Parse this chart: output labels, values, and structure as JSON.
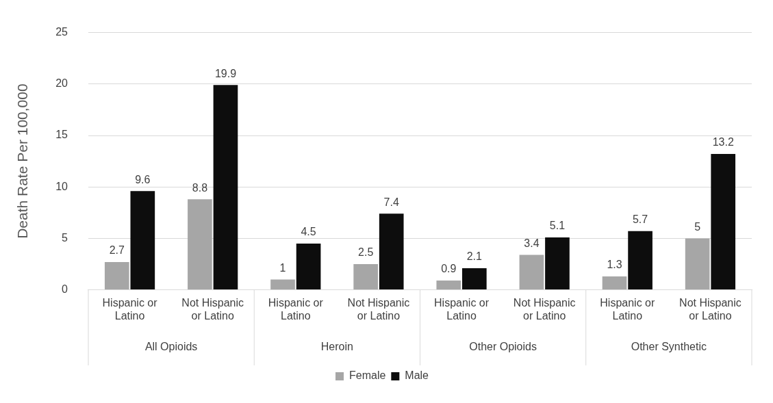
{
  "chart_data": {
    "type": "bar",
    "ylabel": "Death Rate Per 100,000",
    "categories": [
      "Hispanic or Latino",
      "Not Hispanic or Latino",
      "Hispanic or Latino",
      "Not Hispanic or Latino",
      "Hispanic or Latino",
      "Not Hispanic or Latino",
      "Hispanic or Latino",
      "Not Hispanic or Latino"
    ],
    "series": [
      {
        "name": "Female",
        "color": "#a6a6a6",
        "values": [
          2.7,
          8.8,
          1,
          2.5,
          0.9,
          3.4,
          1.3,
          5
        ]
      },
      {
        "name": "Male",
        "color": "#0d0d0d",
        "values": [
          9.6,
          19.9,
          4.5,
          7.4,
          2.1,
          5.1,
          5.7,
          13.2
        ]
      }
    ],
    "annotations": [
      "All Opioids",
      "Heroin",
      "Other Opioids",
      "Other Synthetic"
    ],
    "ylim": [
      0,
      25
    ],
    "yticks": [
      0,
      5,
      10,
      15,
      20,
      25
    ],
    "grid": "y",
    "legend": "bottom",
    "data_labels": true
  }
}
